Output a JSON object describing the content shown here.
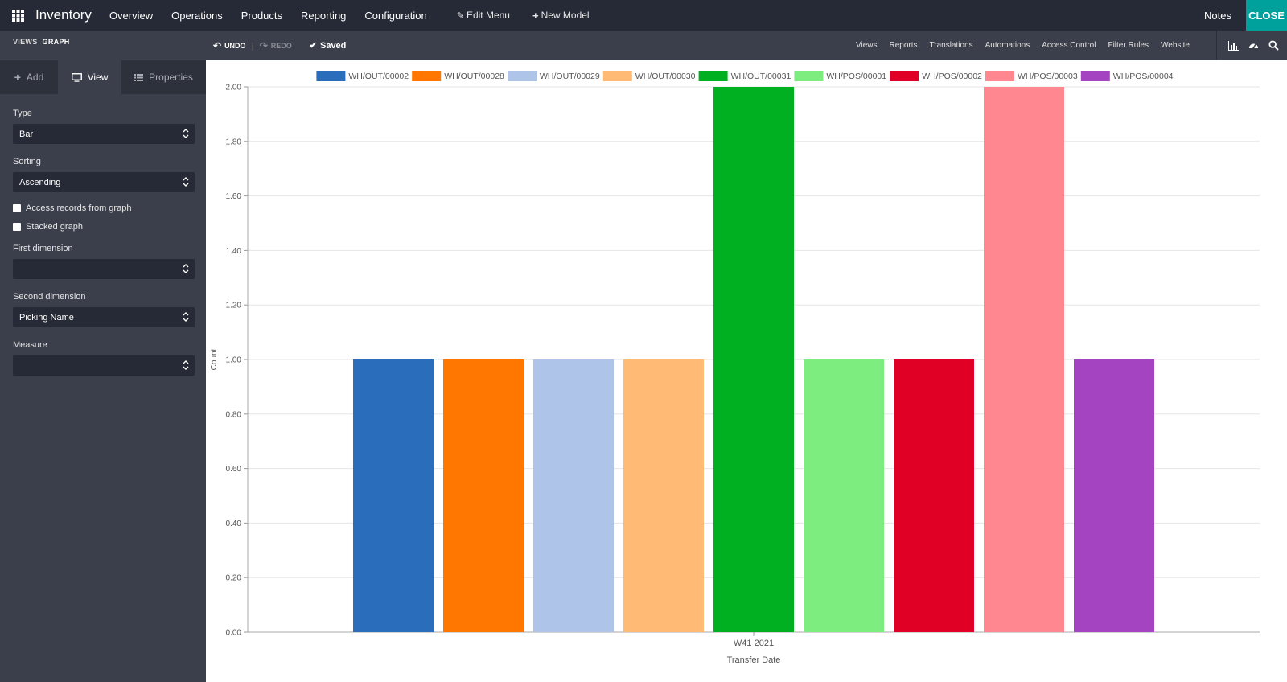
{
  "navbar": {
    "app_name": "Inventory",
    "menu": [
      "Overview",
      "Operations",
      "Products",
      "Reporting",
      "Configuration"
    ],
    "edit_menu": "Edit Menu",
    "new_model": "New Model",
    "notes": "Notes",
    "close": "CLOSE"
  },
  "subbar": {
    "breadcrumb_views": "VIEWS",
    "breadcrumb_current": "GRAPH",
    "undo": "UNDO",
    "redo": "REDO",
    "saved": "Saved",
    "links": [
      "Views",
      "Reports",
      "Translations",
      "Automations",
      "Access Control",
      "Filter Rules",
      "Website"
    ]
  },
  "sidebar": {
    "tabs": {
      "add": "Add",
      "view": "View",
      "properties": "Properties"
    },
    "type_label": "Type",
    "type_value": "Bar",
    "sorting_label": "Sorting",
    "sorting_value": "Ascending",
    "access_records": "Access records from graph",
    "stacked_graph": "Stacked graph",
    "first_dimension_label": "First dimension",
    "first_dimension_value": "",
    "second_dimension_label": "Second dimension",
    "second_dimension_value": "Picking Name",
    "measure_label": "Measure",
    "measure_value": ""
  },
  "chart_data": {
    "type": "bar",
    "categories": [
      "W41 2021"
    ],
    "series": [
      {
        "name": "WH/OUT/00002",
        "values": [
          1
        ],
        "color": "#2a6ebb"
      },
      {
        "name": "WH/OUT/00028",
        "values": [
          1
        ],
        "color": "#ff7700"
      },
      {
        "name": "WH/OUT/00029",
        "values": [
          1
        ],
        "color": "#aec4e8"
      },
      {
        "name": "WH/OUT/00030",
        "values": [
          1
        ],
        "color": "#ffbb76"
      },
      {
        "name": "WH/OUT/00031",
        "values": [
          2
        ],
        "color": "#00b020"
      },
      {
        "name": "WH/POS/00001",
        "values": [
          1
        ],
        "color": "#7ced7e"
      },
      {
        "name": "WH/POS/00002",
        "values": [
          1
        ],
        "color": "#e00026"
      },
      {
        "name": "WH/POS/00003",
        "values": [
          2
        ],
        "color": "#ff8890"
      },
      {
        "name": "WH/POS/00004",
        "values": [
          1
        ],
        "color": "#a444c0"
      }
    ],
    "xlabel": "Transfer Date",
    "ylabel": "Count",
    "ylim": [
      0,
      2
    ],
    "yticks": [
      "0.00",
      "0.20",
      "0.40",
      "0.60",
      "0.80",
      "1.00",
      "1.20",
      "1.40",
      "1.60",
      "1.80",
      "2.00"
    ],
    "grid": true,
    "legend": "top"
  }
}
